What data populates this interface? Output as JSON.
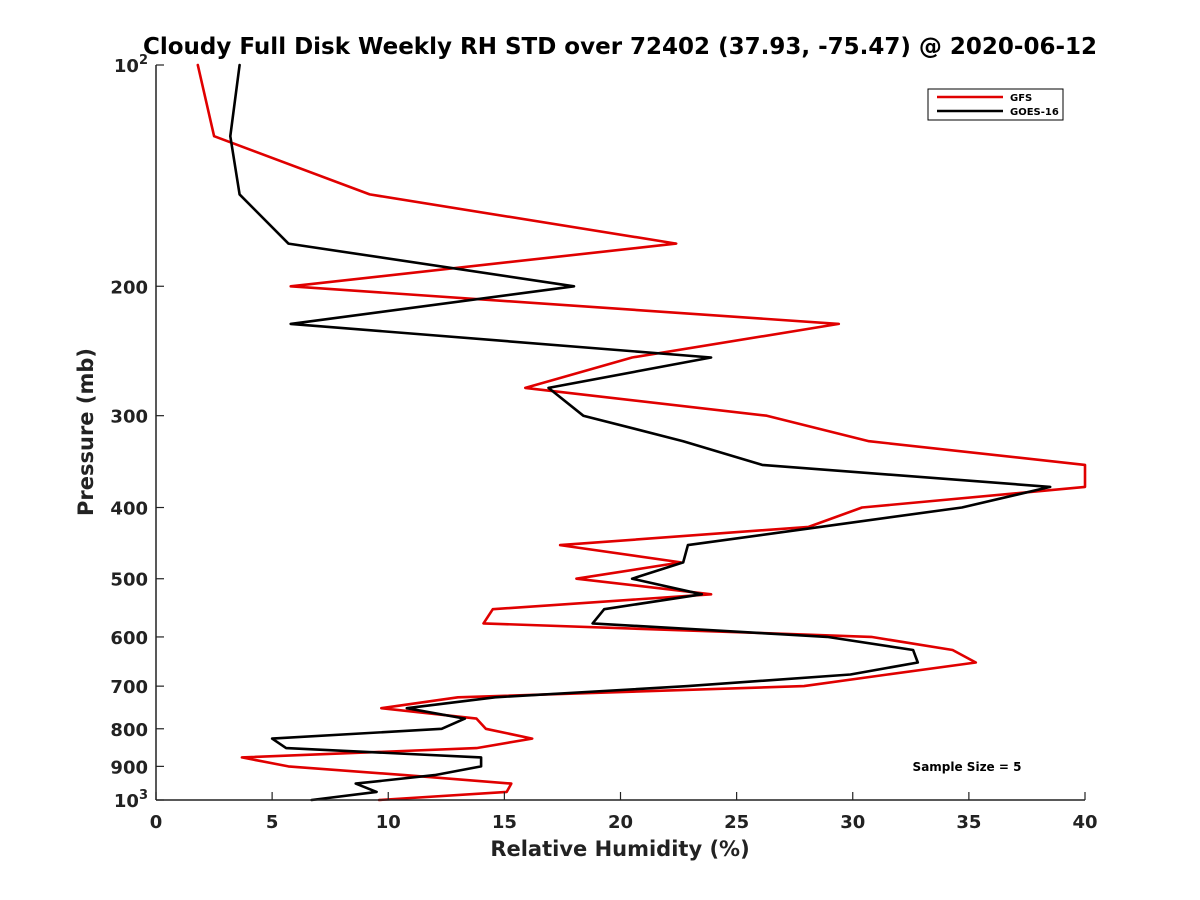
{
  "chart_data": {
    "type": "line",
    "title": "Cloudy Full Disk Weekly RH STD over 72402 (37.93, -75.47) @ 2020-06-12",
    "xlabel": "Relative Humidity (%)",
    "ylabel": "Pressure (mb)",
    "xlim": [
      0,
      40
    ],
    "ylim": [
      100,
      1000
    ],
    "yscale": "log",
    "y_reversed": true,
    "grid": false,
    "legend_position": "top-right",
    "x_ticks": [
      "0",
      "5",
      "10",
      "15",
      "20",
      "25",
      "30",
      "35",
      "40"
    ],
    "y_ticks": [
      {
        "value": 100,
        "base": "10",
        "exp": "2"
      },
      {
        "value": 200,
        "label": "200"
      },
      {
        "value": 300,
        "label": "300"
      },
      {
        "value": 400,
        "label": "400"
      },
      {
        "value": 500,
        "label": "500"
      },
      {
        "value": 600,
        "label": "600"
      },
      {
        "value": 700,
        "label": "700"
      },
      {
        "value": 800,
        "label": "800"
      },
      {
        "value": 900,
        "label": "900"
      },
      {
        "value": 1000,
        "base": "10",
        "exp": "3"
      }
    ],
    "annotation": "Sample Size = 5",
    "series": [
      {
        "name": "GFS",
        "color": "#e00000",
        "points": [
          {
            "x": 1.8,
            "y": 100
          },
          {
            "x": 2.5,
            "y": 125
          },
          {
            "x": 9.2,
            "y": 150
          },
          {
            "x": 22.4,
            "y": 175
          },
          {
            "x": 5.8,
            "y": 200
          },
          {
            "x": 29.4,
            "y": 225
          },
          {
            "x": 20.5,
            "y": 250
          },
          {
            "x": 15.9,
            "y": 275
          },
          {
            "x": 26.3,
            "y": 300
          },
          {
            "x": 30.7,
            "y": 325
          },
          {
            "x": 40.0,
            "y": 350
          },
          {
            "x": 40.0,
            "y": 375
          },
          {
            "x": 30.4,
            "y": 400
          },
          {
            "x": 28.1,
            "y": 425
          },
          {
            "x": 17.4,
            "y": 450
          },
          {
            "x": 22.6,
            "y": 475
          },
          {
            "x": 18.1,
            "y": 500
          },
          {
            "x": 23.9,
            "y": 525
          },
          {
            "x": 14.5,
            "y": 550
          },
          {
            "x": 14.1,
            "y": 575
          },
          {
            "x": 30.8,
            "y": 600
          },
          {
            "x": 34.3,
            "y": 625
          },
          {
            "x": 35.3,
            "y": 650
          },
          {
            "x": 31.5,
            "y": 675
          },
          {
            "x": 27.9,
            "y": 700
          },
          {
            "x": 13.0,
            "y": 725
          },
          {
            "x": 9.7,
            "y": 750
          },
          {
            "x": 13.8,
            "y": 775
          },
          {
            "x": 14.2,
            "y": 800
          },
          {
            "x": 16.2,
            "y": 825
          },
          {
            "x": 13.8,
            "y": 850
          },
          {
            "x": 3.7,
            "y": 875
          },
          {
            "x": 5.7,
            "y": 900
          },
          {
            "x": 10.7,
            "y": 925
          },
          {
            "x": 15.3,
            "y": 950
          },
          {
            "x": 15.1,
            "y": 975
          },
          {
            "x": 9.6,
            "y": 1000
          }
        ]
      },
      {
        "name": "GOES-16",
        "color": "#000000",
        "points": [
          {
            "x": 3.6,
            "y": 100
          },
          {
            "x": 3.2,
            "y": 125
          },
          {
            "x": 3.6,
            "y": 150
          },
          {
            "x": 5.7,
            "y": 175
          },
          {
            "x": 18.0,
            "y": 200
          },
          {
            "x": 5.8,
            "y": 225
          },
          {
            "x": 23.9,
            "y": 250
          },
          {
            "x": 16.9,
            "y": 275
          },
          {
            "x": 18.4,
            "y": 300
          },
          {
            "x": 22.7,
            "y": 325
          },
          {
            "x": 26.1,
            "y": 350
          },
          {
            "x": 38.5,
            "y": 375
          },
          {
            "x": 34.7,
            "y": 400
          },
          {
            "x": 28.6,
            "y": 425
          },
          {
            "x": 22.9,
            "y": 450
          },
          {
            "x": 22.7,
            "y": 475
          },
          {
            "x": 20.5,
            "y": 500
          },
          {
            "x": 23.5,
            "y": 525
          },
          {
            "x": 19.3,
            "y": 550
          },
          {
            "x": 18.8,
            "y": 575
          },
          {
            "x": 28.9,
            "y": 600
          },
          {
            "x": 32.6,
            "y": 625
          },
          {
            "x": 32.8,
            "y": 650
          },
          {
            "x": 29.9,
            "y": 675
          },
          {
            "x": 22.9,
            "y": 700
          },
          {
            "x": 14.6,
            "y": 725
          },
          {
            "x": 10.8,
            "y": 750
          },
          {
            "x": 13.3,
            "y": 775
          },
          {
            "x": 12.3,
            "y": 800
          },
          {
            "x": 5.0,
            "y": 825
          },
          {
            "x": 5.6,
            "y": 850
          },
          {
            "x": 14.0,
            "y": 875
          },
          {
            "x": 14.0,
            "y": 900
          },
          {
            "x": 12.0,
            "y": 925
          },
          {
            "x": 8.6,
            "y": 950
          },
          {
            "x": 9.5,
            "y": 975
          },
          {
            "x": 6.7,
            "y": 1000
          }
        ]
      }
    ]
  }
}
